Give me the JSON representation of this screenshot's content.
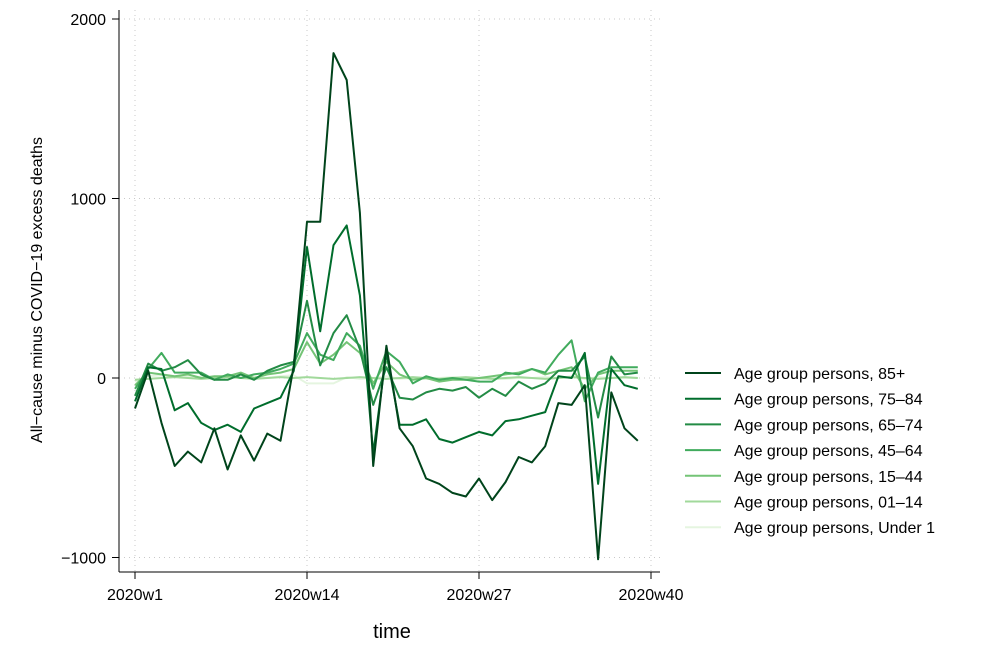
{
  "chart_data": {
    "type": "line",
    "xlabel": "time",
    "ylabel": "All−cause minus COVID−19 excess deaths",
    "x_ticks": [
      "2020w1",
      "2020w14",
      "2020w27",
      "2020w40"
    ],
    "x_tick_weeks": [
      1,
      14,
      27,
      40
    ],
    "xlim": [
      1,
      40
    ],
    "y_ticks": [
      "−1000",
      "0",
      "1000",
      "2000"
    ],
    "y_tick_values": [
      -1000,
      0,
      1000,
      2000
    ],
    "ylim": [
      -1050,
      2050
    ],
    "grid": true,
    "legend_position": "right",
    "x_weeks": [
      1,
      2,
      3,
      4,
      5,
      6,
      7,
      8,
      9,
      10,
      11,
      12,
      13,
      14,
      15,
      16,
      17,
      18,
      19,
      20,
      21,
      22,
      23,
      24,
      25,
      26,
      27,
      28,
      29,
      30,
      31,
      32,
      33,
      34,
      35,
      36,
      37,
      38,
      39
    ],
    "series": [
      {
        "name": "Age group persons, 85+",
        "color": "#00441b",
        "values": [
          -170,
          40,
          -250,
          -490,
          -410,
          -470,
          -280,
          -510,
          -320,
          -460,
          -310,
          -350,
          70,
          870,
          870,
          1810,
          1660,
          920,
          -490,
          180,
          -280,
          -380,
          -560,
          -590,
          -640,
          -660,
          -560,
          -680,
          -580,
          -440,
          -470,
          -380,
          -140,
          -150,
          -40,
          -1010,
          -80,
          -280,
          -350
        ]
      },
      {
        "name": "Age group persons, 75–84",
        "color": "#006d2c",
        "values": [
          -130,
          60,
          50,
          -180,
          -140,
          -250,
          -290,
          -260,
          -300,
          -170,
          -140,
          -110,
          40,
          730,
          260,
          740,
          850,
          460,
          -420,
          140,
          -260,
          -260,
          -230,
          -340,
          -360,
          -330,
          -300,
          -320,
          -240,
          -230,
          -210,
          -190,
          10,
          0,
          140,
          -590,
          50,
          -40,
          -60
        ]
      },
      {
        "name": "Age group persons, 65–74",
        "color": "#238b45",
        "values": [
          -100,
          80,
          40,
          60,
          100,
          20,
          -10,
          -10,
          20,
          -10,
          40,
          70,
          90,
          430,
          70,
          250,
          350,
          160,
          -150,
          60,
          -110,
          -120,
          -80,
          -60,
          -70,
          -50,
          -110,
          -60,
          -100,
          -20,
          -60,
          -30,
          40,
          40,
          120,
          -220,
          120,
          20,
          30
        ]
      },
      {
        "name": "Age group persons, 45–64",
        "color": "#41ab5d",
        "values": [
          -60,
          50,
          140,
          30,
          30,
          30,
          -10,
          20,
          0,
          20,
          30,
          50,
          80,
          250,
          130,
          100,
          250,
          180,
          -60,
          150,
          90,
          -30,
          10,
          -10,
          0,
          -10,
          -20,
          -20,
          30,
          20,
          50,
          30,
          130,
          210,
          -130,
          30,
          60,
          60,
          60
        ]
      },
      {
        "name": "Age group persons, 15–44",
        "color": "#74c476",
        "values": [
          -40,
          30,
          20,
          10,
          20,
          0,
          10,
          10,
          30,
          0,
          20,
          30,
          50,
          200,
          80,
          130,
          200,
          140,
          -30,
          90,
          20,
          -10,
          0,
          -20,
          -10,
          -10,
          0,
          10,
          20,
          30,
          50,
          20,
          40,
          60,
          -60,
          20,
          40,
          40,
          40
        ]
      },
      {
        "name": "Age group persons, 01–14",
        "color": "#a1d99b",
        "values": [
          -10,
          -5,
          0,
          5,
          0,
          -5,
          0,
          5,
          0,
          -5,
          0,
          5,
          0,
          5,
          0,
          -5,
          0,
          5,
          0,
          -5,
          0,
          5,
          0,
          -5,
          0,
          5,
          0,
          -5,
          0,
          5,
          0,
          -5,
          0,
          5,
          0,
          -5,
          0,
          5,
          0
        ]
      },
      {
        "name": "Age group persons, Under 1",
        "color": "#e5f5e0",
        "values": [
          -20,
          10,
          15,
          5,
          10,
          5,
          0,
          10,
          0,
          5,
          0,
          10,
          15,
          -30,
          -30,
          -30,
          5,
          -5,
          0,
          10,
          -5,
          0,
          -5,
          0,
          5,
          0,
          -5,
          0,
          -5,
          0,
          0,
          5,
          0,
          10,
          -5,
          5,
          0,
          0,
          0
        ]
      }
    ]
  }
}
